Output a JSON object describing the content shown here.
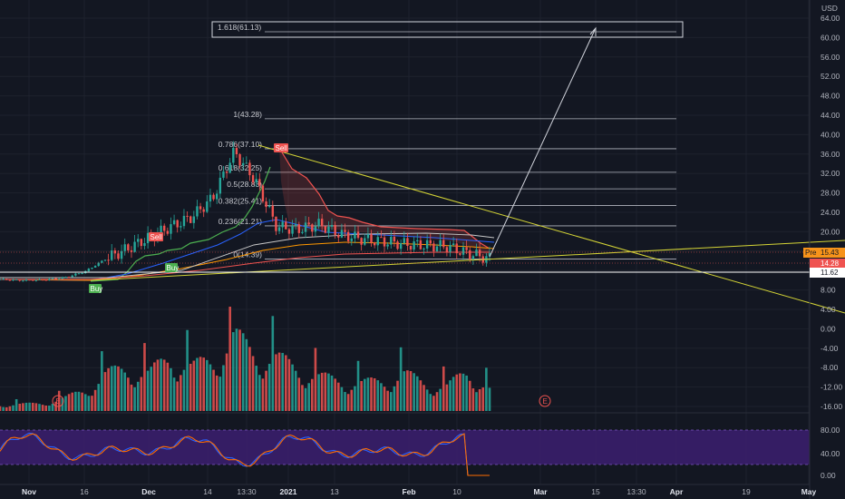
{
  "currency": "USD",
  "price_axis": {
    "ticks": [
      "64.00",
      "60.00",
      "56.00",
      "52.00",
      "48.00",
      "44.00",
      "40.00",
      "36.00",
      "32.00",
      "28.00",
      "24.00",
      "20.00",
      "16.00",
      "12.00",
      "8.00",
      "4.00",
      "0.00",
      "-4.00",
      "-8.00",
      "-12.00",
      "-16.00"
    ],
    "tags": [
      {
        "label": "Pre",
        "value": "15.43",
        "color": "#f7931a"
      },
      {
        "label": "",
        "value": "14.28",
        "color": "#ef5350"
      },
      {
        "label": "",
        "value": "11.62",
        "color": "#ffffff"
      }
    ]
  },
  "osc_axis": {
    "ticks": [
      "80.00",
      "40.00",
      "0.00"
    ]
  },
  "time_axis": [
    "Nov",
    "16",
    "Dec",
    "14",
    "13:30",
    "2021",
    "13",
    "Feb",
    "10",
    "Mar",
    "15",
    "13:30",
    "Apr",
    "19",
    "May"
  ],
  "fib_levels": [
    {
      "label": "1.618(61.13)",
      "value": 61.13
    },
    {
      "label": "1(43.28)",
      "value": 43.28
    },
    {
      "label": "0.786(37.10)",
      "value": 37.1
    },
    {
      "label": "0.618(32.25)",
      "value": 32.25
    },
    {
      "label": "0.5(28.83)",
      "value": 28.83
    },
    {
      "label": "0.382(25.41)",
      "value": 25.41
    },
    {
      "label": "0.236(21.21)",
      "value": 21.21
    },
    {
      "label": "0(14.39)",
      "value": 14.39
    }
  ],
  "signals": [
    {
      "label": "Buy",
      "date": "Nov 23"
    },
    {
      "label": "Sell",
      "date": "Nov 29"
    },
    {
      "label": "Buy",
      "date": "Dec 2"
    },
    {
      "label": "Sell",
      "date": "Dec 24"
    }
  ],
  "earnings": [
    "E",
    "E"
  ],
  "colors": {
    "up": "#26a69a",
    "down": "#ef5350",
    "fib": "#b2b5be",
    "trend": "#d4d436",
    "signal_buy": "#4caf50",
    "signal_sell": "#ef5350",
    "osc_fill": "#3c1e70"
  },
  "chart_data": {
    "type": "candlestick",
    "x": [
      "Nov 1",
      "Nov 5",
      "Nov 10",
      "Nov 16",
      "Nov 20",
      "Nov 25",
      "Dec 1",
      "Dec 7",
      "Dec 11",
      "Dec 16",
      "Dec 21",
      "Dec 24",
      "Dec 28",
      "Jan 4",
      "Jan 8",
      "Jan 13",
      "Jan 19",
      "Jan 25",
      "Jan 29",
      "Feb 4",
      "Feb 9",
      "Feb 12",
      "Feb 17",
      "Feb 19"
    ],
    "close": [
      10.2,
      10.0,
      10.1,
      10.5,
      11.8,
      14.5,
      16.5,
      18.8,
      21.0,
      23.0,
      27.0,
      36.5,
      30.5,
      21.0,
      20.5,
      21.5,
      19.5,
      18.5,
      18.0,
      17.5,
      17.2,
      17.0,
      15.5,
      14.5
    ],
    "volume": [
      1.0,
      1.1,
      1.3,
      2.0,
      3.5,
      6.0,
      7.0,
      6.0,
      9.0,
      7.0,
      8.5,
      12.0,
      9.5,
      8.5,
      7.0,
      5.5,
      5.0,
      4.5,
      5.0,
      6.0,
      4.5,
      4.0,
      6.5,
      3.5
    ],
    "ylim": [
      -16,
      64
    ],
    "osc_ylim": [
      0,
      100
    ]
  }
}
